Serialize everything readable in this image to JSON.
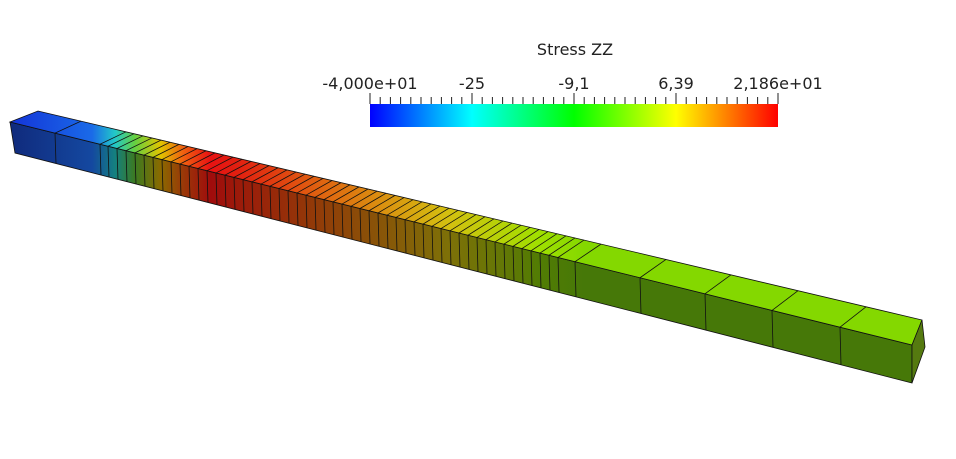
{
  "colorbar": {
    "title": "Stress ZZ",
    "labels": [
      "-4,000e+01",
      "-25",
      "-9,1",
      "6,39",
      "2,186e+01"
    ]
  }
}
